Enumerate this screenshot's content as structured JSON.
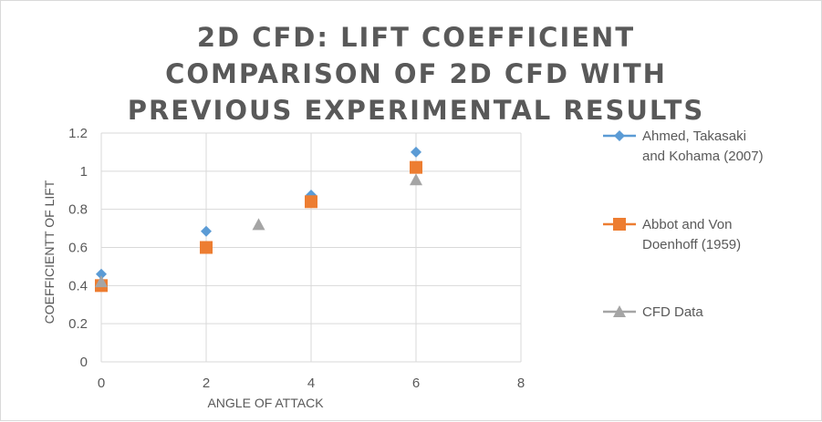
{
  "chart_data": {
    "type": "scatter",
    "title": "2D CFD: LIFT COEFFICIENT COMPARISON OF 2D CFD WITH PREVIOUS EXPERIMENTAL RESULTS",
    "xlabel": "ANGLE OF ATTACK",
    "ylabel": "COEFFICIENTT OF LIFT",
    "xlim": [
      0,
      8
    ],
    "ylim": [
      0,
      1.2
    ],
    "xticks": [
      "0",
      "2",
      "4",
      "6",
      "8"
    ],
    "yticks": [
      "0",
      "0.2",
      "0.4",
      "0.6",
      "0.8",
      "1",
      "1.2"
    ],
    "grid": true,
    "legend_position": "right",
    "series": [
      {
        "name": "Ahmed, Takasaki and Kohama (2007)",
        "legend_lines": [
          "Ahmed, Takasaki",
          "and Kohama (2007)"
        ],
        "marker": "diamond",
        "color": "#5b9bd5",
        "x": [
          0,
          2,
          4,
          6
        ],
        "y": [
          0.46,
          0.685,
          0.875,
          1.1
        ]
      },
      {
        "name": "Abbot and Von Doenhoff (1959)",
        "legend_lines": [
          "Abbot and Von",
          "Doenhoff (1959)"
        ],
        "marker": "square",
        "color": "#ed7d31",
        "x": [
          0,
          2,
          4,
          6
        ],
        "y": [
          0.4,
          0.6,
          0.84,
          1.02
        ]
      },
      {
        "name": "CFD Data",
        "legend_lines": [
          "CFD Data"
        ],
        "marker": "triangle",
        "color": "#a5a5a5",
        "x": [
          0,
          3,
          6
        ],
        "y": [
          0.42,
          0.72,
          0.955
        ]
      }
    ]
  }
}
